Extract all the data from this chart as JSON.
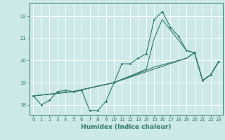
{
  "xlabel": "Humidex (Indice chaleur)",
  "background_color": "#cce8e8",
  "grid_color": "#ffffff",
  "line_color": "#2e7b6e",
  "xlim": [
    -0.5,
    23.5
  ],
  "ylim": [
    17.55,
    22.6
  ],
  "xticks": [
    0,
    1,
    2,
    3,
    4,
    5,
    6,
    7,
    8,
    9,
    10,
    11,
    12,
    13,
    14,
    15,
    16,
    17,
    18,
    19,
    20,
    21,
    22,
    23
  ],
  "yticks": [
    18,
    19,
    20,
    21,
    22
  ],
  "line1_x": [
    0,
    1,
    2,
    3,
    4,
    5,
    6,
    7,
    8,
    9,
    10,
    11,
    12,
    13,
    14,
    15,
    16,
    17,
    18,
    19,
    20,
    21,
    22,
    23
  ],
  "line1_y": [
    18.4,
    18.0,
    18.2,
    18.6,
    18.65,
    18.6,
    18.65,
    17.75,
    17.75,
    18.15,
    19.0,
    19.85,
    19.85,
    20.1,
    20.3,
    21.85,
    22.2,
    21.5,
    21.1,
    20.45,
    20.35,
    19.1,
    19.35,
    19.95
  ],
  "line2_x": [
    0,
    5,
    10,
    14,
    15,
    16,
    19,
    20,
    21,
    22,
    23
  ],
  "line2_y": [
    18.4,
    18.6,
    19.0,
    19.6,
    21.0,
    21.85,
    20.45,
    20.35,
    19.1,
    19.35,
    19.95
  ],
  "line3_x": [
    0,
    5,
    10,
    19,
    20,
    21,
    22,
    23
  ],
  "line3_y": [
    18.4,
    18.6,
    19.0,
    20.1,
    20.35,
    19.1,
    19.35,
    19.95
  ],
  "line4_x": [
    0,
    5,
    10,
    15,
    19,
    20,
    21,
    22,
    23
  ],
  "line4_y": [
    18.4,
    18.6,
    19.0,
    19.7,
    20.1,
    20.35,
    19.1,
    19.35,
    19.95
  ]
}
